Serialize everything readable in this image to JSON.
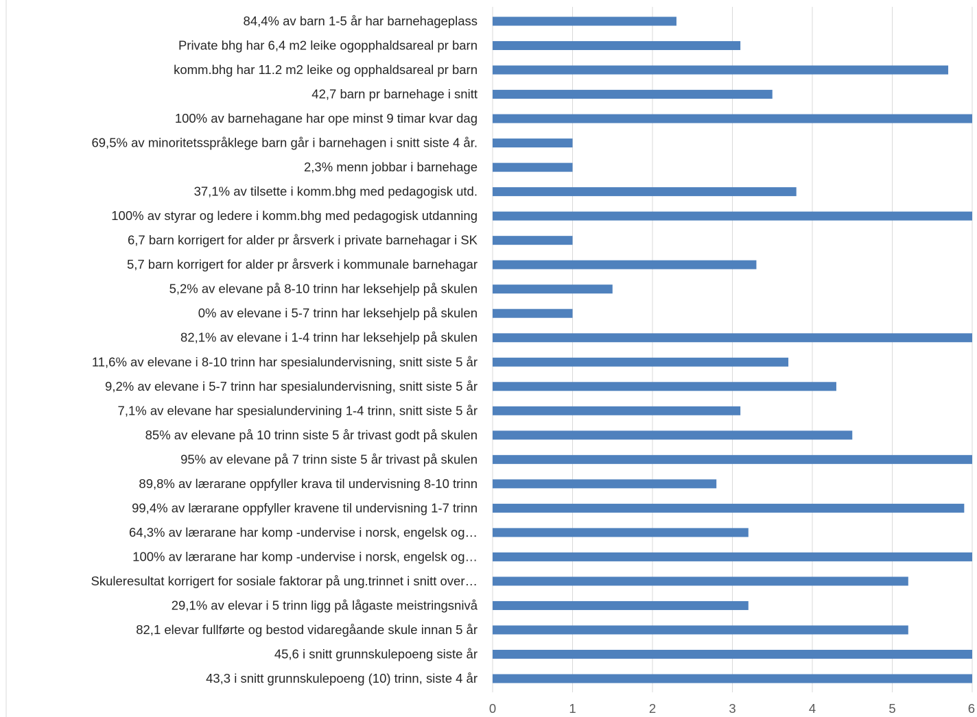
{
  "chart_data": {
    "type": "bar",
    "orientation": "horizontal",
    "title": "",
    "xlabel": "",
    "ylabel": "",
    "xlim": [
      0,
      6
    ],
    "ticks": [
      "0",
      "1",
      "2",
      "3",
      "4",
      "5",
      "6"
    ],
    "grid": true,
    "legend": "none",
    "bar_color": "#4f81bd",
    "categories": [
      "84,4% av barn 1-5 år har barnehageplass",
      "Private bhg har 6,4 m2 leike ogopphaldsareal pr barn",
      "komm.bhg har 11.2 m2 leike og opphaldsareal pr barn",
      "42,7 barn pr barnehage i snitt",
      "100% av barnehagane har ope minst 9 timar kvar dag",
      "69,5% av minoritetsspråklege barn går i barnehagen i snitt siste 4 år.",
      "2,3% menn jobbar i barnehage",
      "37,1% av tilsette i komm.bhg med pedagogisk utd.",
      "100% av styrar og ledere i komm.bhg med pedagogisk utdanning",
      "6,7 barn korrigert for alder pr årsverk i private barnehagar i SK",
      "5,7 barn korrigert for alder pr årsverk i kommunale barnehagar",
      "5,2% av elevane på 8-10 trinn har leksehjelp på skulen",
      "0% av elevane i 5-7 trinn har leksehjelp på skulen",
      "82,1% av elevane i 1-4 trinn har leksehjelp på skulen",
      "11,6% av elevane i 8-10 trinn har spesialundervisning, snitt siste 5 år",
      "9,2% av elevane i 5-7 trinn har spesialundervisning, snitt siste 5 år",
      "7,1% av elevane har spesialundervining 1-4 trinn, snitt siste 5 år",
      "85% av elevane på 10 trinn siste 5 år trivast godt på skulen",
      "95% av elevane på 7 trinn siste 5 år trivast på skulen",
      "89,8% av lærarane oppfyller krava til undervisning 8-10 trinn",
      "99,4% av lærarane oppfyller kravene til undervisning 1-7 trinn",
      "64,3% av lærarane har komp -undervise i norsk, engelsk og…",
      "100% av lærarane har komp -undervise i norsk, engelsk og…",
      "Skuleresultat korrigert for sosiale faktorar på ung.trinnet i snitt over…",
      "29,1% av elevar i 5 trinn ligg på lågaste meistringsnivå",
      "82,1 elevar fullførte og bestod vidaregåande skule innan 5 år",
      "45,6 i snitt grunnskulepoeng siste år",
      "43,3 i snitt grunnskulepoeng (10) trinn, siste 4 år"
    ],
    "values": [
      2.3,
      3.1,
      5.7,
      3.5,
      6,
      1,
      1,
      3.8,
      6,
      1,
      3.3,
      1.5,
      1,
      6,
      3.7,
      4.3,
      3.1,
      4.5,
      6,
      2.8,
      5.9,
      3.2,
      6,
      5.2,
      3.2,
      5.2,
      6,
      6
    ]
  }
}
